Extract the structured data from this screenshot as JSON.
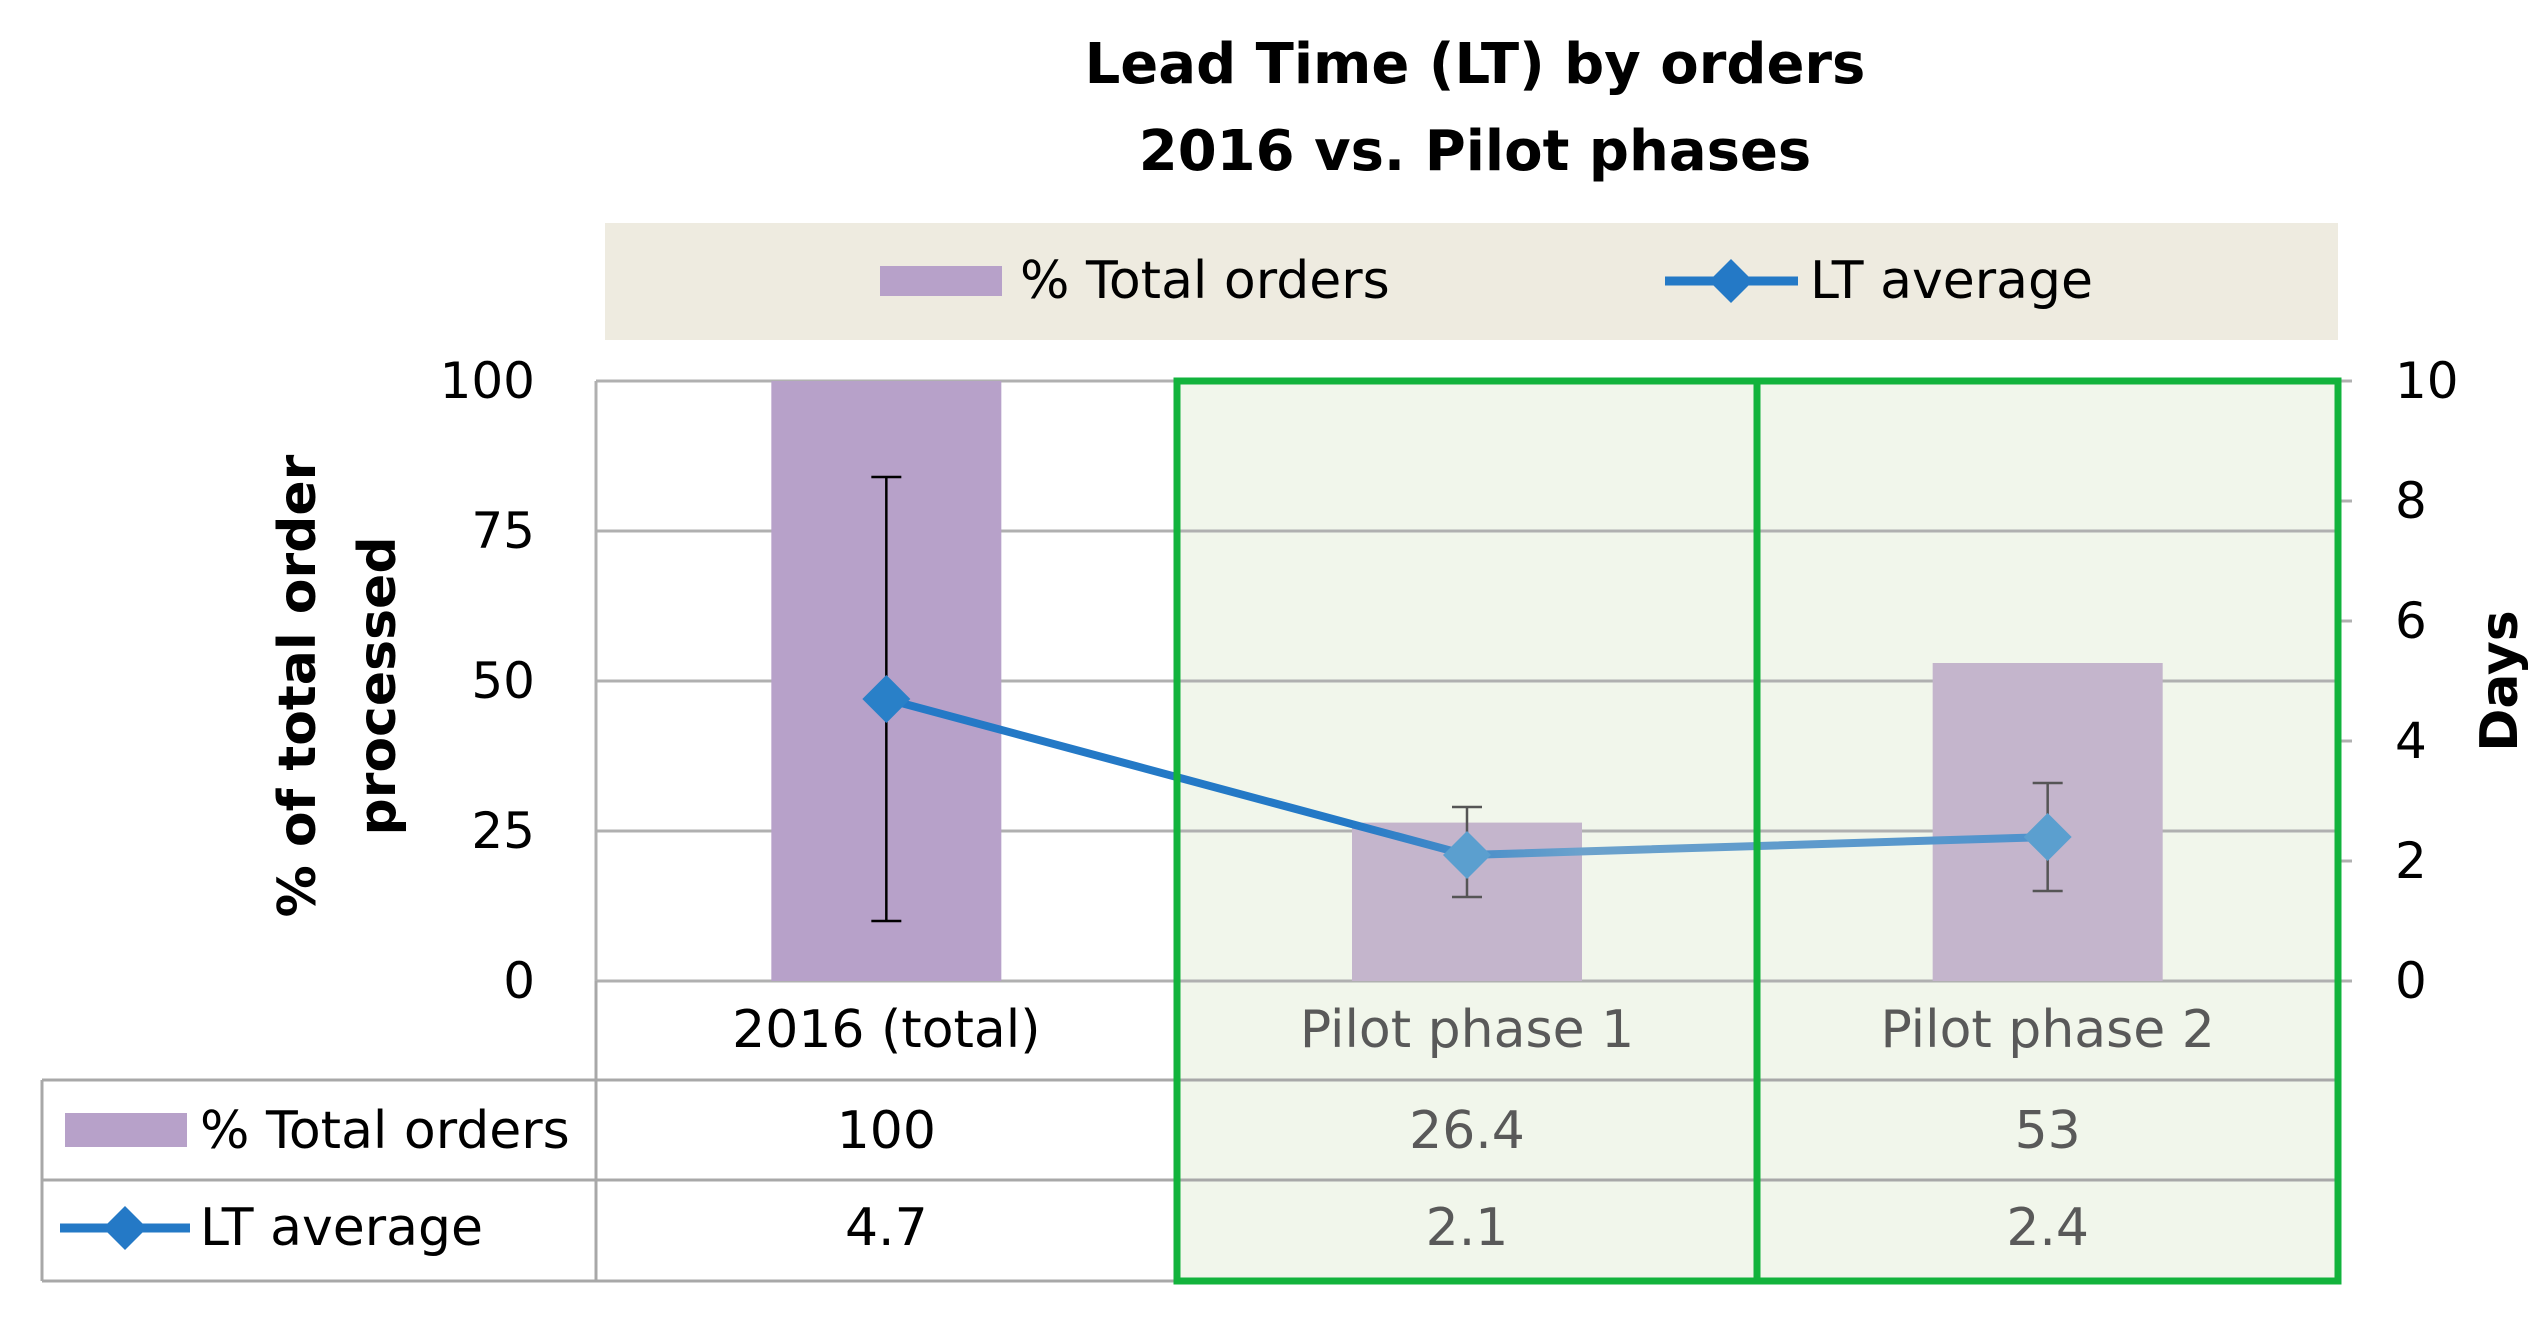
{
  "chart_data": {
    "type": "bar",
    "title_lines": [
      "Lead Time (LT) by orders",
      "2016 vs. Pilot phases"
    ],
    "categories": [
      "2016 (total)",
      "Pilot phase 1",
      "Pilot phase 2"
    ],
    "y_left": {
      "label_lines": [
        "% of total order",
        "processed"
      ],
      "lim": [
        0,
        100
      ],
      "ticks": [
        "0",
        "25",
        "50",
        "75",
        "100"
      ]
    },
    "y_right": {
      "label": "Days",
      "lim": [
        0,
        10
      ],
      "ticks": [
        "0",
        "2",
        "4",
        "6",
        "8",
        "10"
      ]
    },
    "grid": true,
    "legend_position": "top",
    "series": [
      {
        "name": "% Total orders",
        "kind": "bar",
        "axis": "left",
        "values": [
          100,
          26.4,
          53
        ],
        "labels": [
          "100",
          "26.4",
          "53"
        ],
        "color": "#b7a1c9"
      },
      {
        "name": "LT average",
        "kind": "line",
        "axis": "right",
        "marker": "diamond",
        "values": [
          4.7,
          2.1,
          2.4
        ],
        "labels": [
          "4.7",
          "2.1",
          "2.4"
        ],
        "color": "#2980c8",
        "error_low": [
          1.0,
          1.4,
          1.5
        ],
        "error_high": [
          8.4,
          2.9,
          3.3
        ]
      }
    ],
    "highlighted_categories": [
      1,
      2
    ],
    "highlight_color": "#12b33c"
  }
}
